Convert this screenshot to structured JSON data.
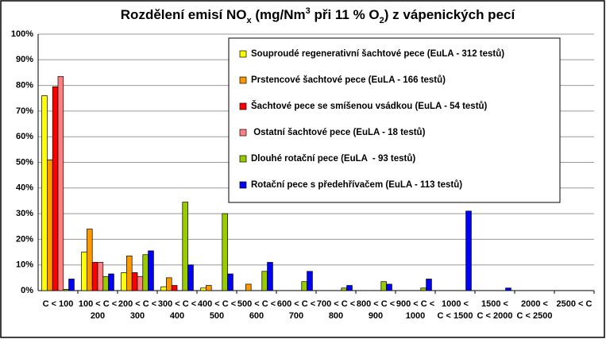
{
  "chart_data": {
    "type": "bar",
    "title": [
      "Rozdělení emisí NO",
      "x",
      " (mg/Nm",
      "3",
      " při 11 % O",
      "2",
      ") z vápenických pecí"
    ],
    "categories": [
      [
        "C < 100"
      ],
      [
        "100 < C <",
        "200"
      ],
      [
        "200 < C <",
        "300"
      ],
      [
        "300 < C <",
        "400"
      ],
      [
        "400 < C <",
        "500"
      ],
      [
        "500 < C <",
        "600"
      ],
      [
        "600 < C <",
        "700"
      ],
      [
        "700 < C <",
        "800"
      ],
      [
        "800 < C <",
        "900"
      ],
      [
        "900 < C <",
        "1000"
      ],
      [
        "1000 <",
        "C < 1500"
      ],
      [
        "1500 <",
        "C < 2000"
      ],
      [
        "2000 <",
        "C < 2500"
      ],
      [
        "2500 < C"
      ]
    ],
    "series": [
      {
        "name": "Souproudé regenerativní šachtové pece (EuLA - 312 testů)",
        "color": "#ffff00",
        "values": [
          76,
          15,
          7,
          1.5,
          1,
          0,
          0,
          0,
          0,
          0,
          0,
          0,
          0,
          0
        ]
      },
      {
        "name": "Prstencové šachtové pece (EuLA - 166 testů)",
        "color": "#ff9900",
        "values": [
          51,
          24,
          13.5,
          5,
          2,
          2.5,
          0,
          0,
          0,
          0,
          0,
          0,
          0,
          0
        ]
      },
      {
        "name": "Šachtové pece se smíšenou vsádkou (EuLA - 54 testů)",
        "color": "#ff0000",
        "values": [
          79.5,
          11,
          7,
          2,
          0,
          0,
          0,
          0,
          0,
          0,
          0,
          0,
          0,
          0
        ]
      },
      {
        "name": " Ostatní šachtové pece (EuLA - 18 testů)",
        "color": "#ff8080",
        "values": [
          83.5,
          11,
          5.5,
          0,
          0,
          0,
          0,
          0,
          0,
          0,
          0,
          0,
          0,
          0
        ]
      },
      {
        "name": "Dlouhé rotační pece (EuLA  - 93 testů)",
        "color": "#99cc00",
        "values": [
          0.5,
          5.5,
          14,
          34.5,
          30,
          7.5,
          3.5,
          1,
          3.5,
          1,
          0,
          0,
          0,
          0
        ]
      },
      {
        "name": "Rotační pece s předehřívačem (EuLA - 113 testů)",
        "color": "#0000ff",
        "values": [
          4.5,
          6.5,
          15.5,
          10,
          6.5,
          11,
          7.5,
          2,
          2.5,
          4.5,
          31,
          1,
          0,
          0
        ]
      }
    ],
    "ylim": [
      0,
      100
    ],
    "yticks": [
      {
        "value": 0,
        "label": "0%"
      },
      {
        "value": 10,
        "label": "10%"
      },
      {
        "value": 20,
        "label": "20%"
      },
      {
        "value": 30,
        "label": "30%"
      },
      {
        "value": 40,
        "label": "40%"
      },
      {
        "value": 50,
        "label": "50%"
      },
      {
        "value": 60,
        "label": "60%"
      },
      {
        "value": 70,
        "label": "70%"
      },
      {
        "value": 80,
        "label": "80%"
      },
      {
        "value": 90,
        "label": "90%"
      },
      {
        "value": 100,
        "label": "100%"
      }
    ],
    "grid": true
  }
}
